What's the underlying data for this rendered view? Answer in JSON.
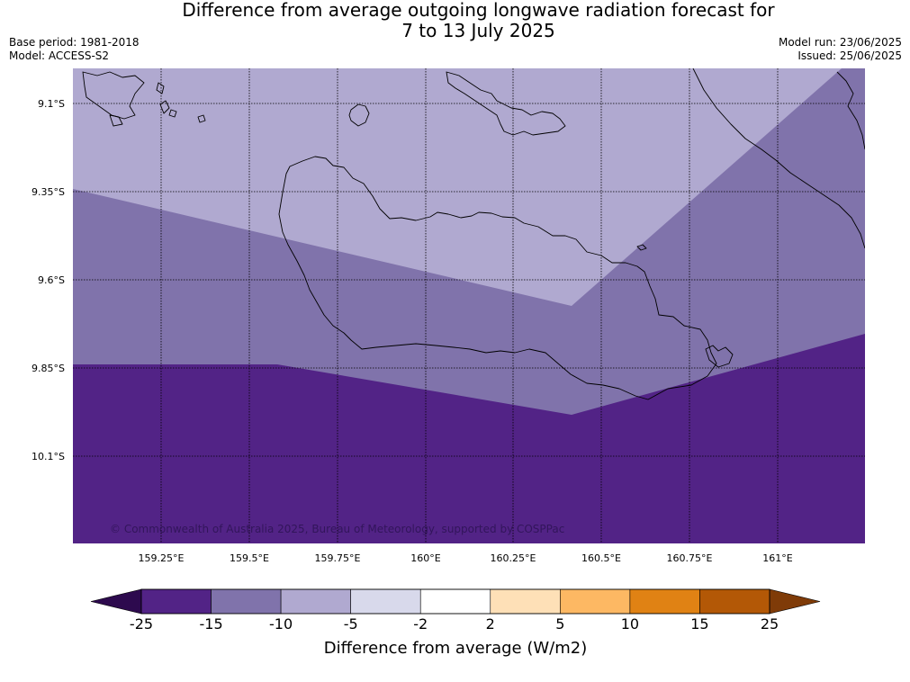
{
  "title": {
    "line1": "Difference from average outgoing longwave radiation forecast for",
    "line2": "7 to 13 July 2025"
  },
  "meta": {
    "base_period": "Base period: 1981-2018",
    "model": "Model: ACCESS-S2",
    "model_run": "Model run: 23/06/2025",
    "issued": "Issued: 25/06/2025"
  },
  "map": {
    "lat_labels": [
      "9.1°S",
      "9.35°S",
      "9.6°S",
      "9.85°S",
      "10.1°S"
    ],
    "lon_labels": [
      "159.25°E",
      "159.5°E",
      "159.75°E",
      "160°E",
      "160.25°E",
      "160.5°E",
      "160.75°E",
      "161°E"
    ],
    "copyright": "© Commonwealth of Australia 2025, Bureau of Meteorology, supported by COSPPac",
    "zone_colors": {
      "light": "#b0a9d0",
      "mid": "#8073ab",
      "dark": "#522386"
    }
  },
  "colorbar": {
    "label": "Difference from average (W/m2)",
    "ticks": [
      "-25",
      "-15",
      "-10",
      "-5",
      "-2",
      "2",
      "5",
      "10",
      "15",
      "25"
    ],
    "low_extend_color": "#2d0a4e",
    "high_extend_color": "#7f3b08",
    "segment_colors": [
      "#522386",
      "#8073ab",
      "#b0a9d0",
      "#d8d9eb",
      "#ffffff",
      "#fee0b7",
      "#fdb863",
      "#e08214",
      "#b35806"
    ]
  }
}
